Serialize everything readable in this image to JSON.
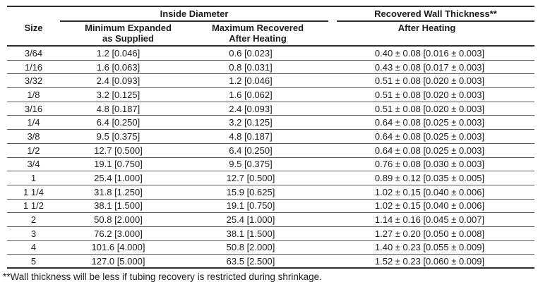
{
  "colors": {
    "background": "#ffffff",
    "text": "#1c1c1c",
    "rule_heavy": "#2e2e2e",
    "rule_light": "#595959"
  },
  "table": {
    "group_headers": {
      "inside_diameter": "Inside Diameter",
      "recovered_wall_thickness": "Recovered Wall Thickness**"
    },
    "column_headers": {
      "size": "Size",
      "min_expanded_line1": "Minimum Expanded",
      "min_expanded_line2": "as Supplied",
      "max_recovered_line1": "Maximum Recovered",
      "max_recovered_line2": "After Heating",
      "after_heating": "After Heating"
    },
    "rows": [
      {
        "size": "3/64",
        "min_expanded": "1.2 [0.046]",
        "max_recovered": "0.6 [0.023]",
        "wall_thickness": "0.40 ± 0.08 [0.016 ± 0.003]"
      },
      {
        "size": "1/16",
        "min_expanded": "1.6 [0.063]",
        "max_recovered": "0.8 [0.031]",
        "wall_thickness": "0.43 ± 0.08 [0.017 ± 0.003]"
      },
      {
        "size": "3/32",
        "min_expanded": "2.4 [0.093]",
        "max_recovered": "1.2 [0.046]",
        "wall_thickness": "0.51 ± 0.08 [0.020 ± 0.003]"
      },
      {
        "size": "1/8",
        "min_expanded": "3.2 [0.125]",
        "max_recovered": "1.6 [0.062]",
        "wall_thickness": "0.51 ± 0.08 [0.020 ± 0.003]"
      },
      {
        "size": "3/16",
        "min_expanded": "4.8 [0.187]",
        "max_recovered": "2.4 [0.093]",
        "wall_thickness": "0.51 ± 0.08 [0.020 ± 0.003]"
      },
      {
        "size": "1/4",
        "min_expanded": "6.4 [0.250]",
        "max_recovered": "3.2 [0.125]",
        "wall_thickness": "0.64 ± 0.08 [0.025 ± 0.003]"
      },
      {
        "size": "3/8",
        "min_expanded": "9.5 [0.375]",
        "max_recovered": "4.8 [0.187]",
        "wall_thickness": "0.64 ± 0.08 [0.025 ± 0.003]"
      },
      {
        "size": "1/2",
        "min_expanded": "12.7 [0.500]",
        "max_recovered": "6.4 [0.250]",
        "wall_thickness": "0.64 ± 0.08 [0.025 ± 0.003]"
      },
      {
        "size": "3/4",
        "min_expanded": "19.1 [0.750]",
        "max_recovered": "9.5 [0.375]",
        "wall_thickness": "0.76 ± 0.08 [0.030 ± 0.003]"
      },
      {
        "size": "1",
        "min_expanded": "25.4 [1.000]",
        "max_recovered": "12.7 [0.500]",
        "wall_thickness": "0.89 ± 0.12 [0.035 ± 0.005]"
      },
      {
        "size": "1 1/4",
        "min_expanded": "31.8 [1.250]",
        "max_recovered": "15.9 [0.625]",
        "wall_thickness": "1.02 ± 0.15 [0.040 ± 0.006]"
      },
      {
        "size": "1 1/2",
        "min_expanded": "38.1 [1.500]",
        "max_recovered": "19.1 [0.750]",
        "wall_thickness": "1.02 ± 0.15 [0.040 ± 0.006]"
      },
      {
        "size": "2",
        "min_expanded": "50.8 [2.000]",
        "max_recovered": "25.4 [1.000]",
        "wall_thickness": "1.14 ± 0.16 [0.045 ± 0.007]"
      },
      {
        "size": "3",
        "min_expanded": "76.2 [3.000]",
        "max_recovered": "38.1 [1.500]",
        "wall_thickness": "1.27 ± 0.20 [0.050 ± 0.008]"
      },
      {
        "size": "4",
        "min_expanded": "101.6 [4.000]",
        "max_recovered": "50.8 [2.000]",
        "wall_thickness": "1.40 ± 0.23 [0.055 ± 0.009]"
      },
      {
        "size": "5",
        "min_expanded": "127.0 [5.000]",
        "max_recovered": "63.5 [2.500]",
        "wall_thickness": "1.52 ± 0.23 [0.060 ± 0.009]"
      }
    ],
    "footnote": "**Wall thickness will be less if tubing recovery is restricted during shrinkage."
  }
}
